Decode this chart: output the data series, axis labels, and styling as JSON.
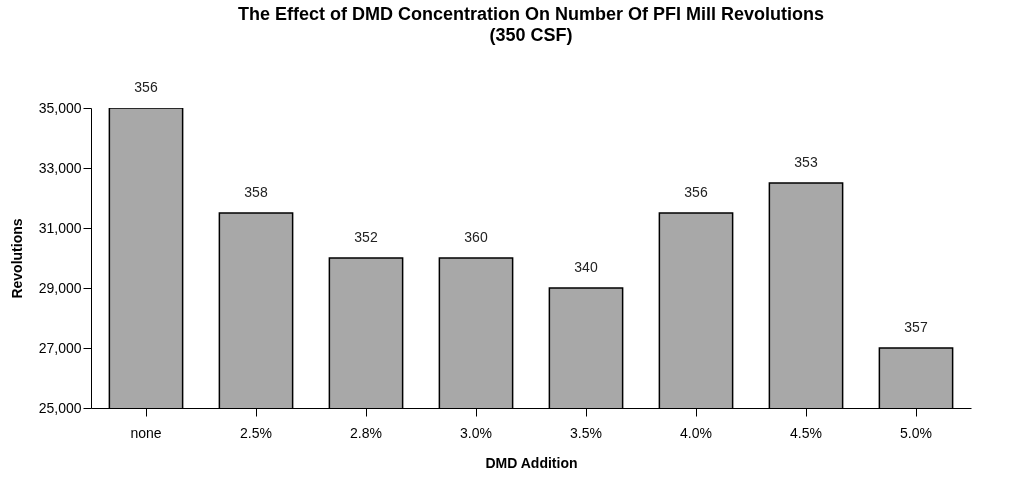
{
  "chart_data": {
    "type": "bar",
    "title": "The Effect of DMD Concentration On Number Of PFI Mill Revolutions",
    "subtitle": "(350 CSF)",
    "xlabel": "DMD Addition",
    "ylabel": "Revolutions",
    "categories": [
      "none",
      "2.5%",
      "2.8%",
      "3.0%",
      "3.5%",
      "4.0%",
      "4.5%",
      "5.0%"
    ],
    "values": [
      35000,
      31500,
      30000,
      30000,
      29000,
      31500,
      32500,
      27000
    ],
    "annotations": [
      {
        "text": "356",
        "x": "none",
        "y": 35000
      },
      {
        "text": "358",
        "x": "2.5%",
        "y": 31500
      },
      {
        "text": "352",
        "x": "2.8%",
        "y": 30000
      },
      {
        "text": "360",
        "x": "3.0%",
        "y": 30000
      },
      {
        "text": "340",
        "x": "3.5%",
        "y": 29000
      },
      {
        "text": "356",
        "x": "4.0%",
        "y": 31500
      },
      {
        "text": "353",
        "x": "4.5%",
        "y": 32500
      },
      {
        "text": "357",
        "x": "5.0%",
        "y": 27000
      }
    ],
    "color": "#a8a8a8",
    "ylim": [
      25000,
      35000
    ],
    "yticks": [
      {
        "value": 25000,
        "label": "25,000"
      },
      {
        "value": 27000,
        "label": "27,000"
      },
      {
        "value": 29000,
        "label": "29,000"
      },
      {
        "value": 31000,
        "label": "31,000"
      },
      {
        "value": 33000,
        "label": "33,000"
      },
      {
        "value": 35000,
        "label": "35,000"
      }
    ],
    "grid": false
  }
}
